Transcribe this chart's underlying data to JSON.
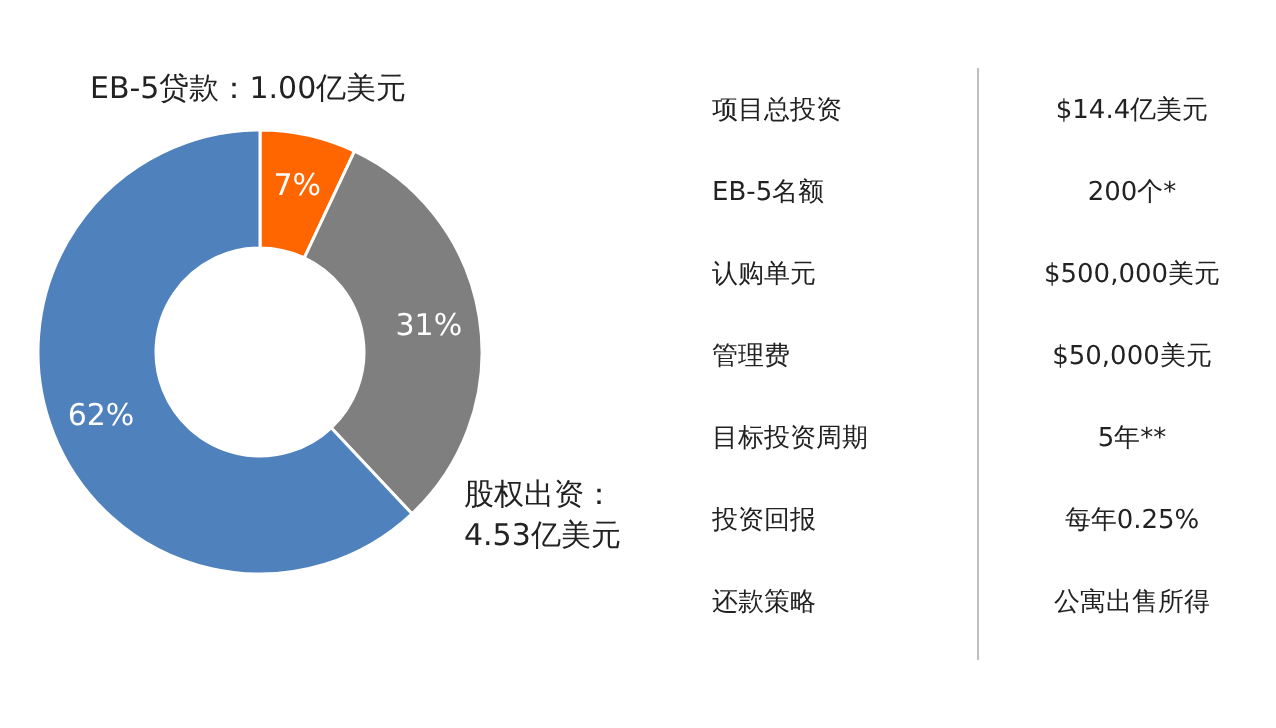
{
  "chart_data": [
    {
      "type": "donut",
      "categories": [
        "EB-5贷款：1.00亿美元",
        "股权出资：\n4.53亿美元",
        null
      ],
      "values": [
        7,
        31,
        62
      ],
      "colors": [
        "#ff6600",
        "#7f7f7f",
        "#4f81bd"
      ],
      "value_labels": [
        "7%",
        "31%",
        "62%"
      ]
    },
    {
      "type": "other",
      "annotations": [
        "项目总投资",
        "$14.4亿美元",
        "EB-5名额",
        "200个*",
        "认购单元",
        "$500,000美元",
        "管理费",
        "$50,000美元",
        "目标投资周期",
        "5年**",
        "投资回报",
        "每年0.25%",
        "还款策略",
        "公寓出售所得"
      ]
    }
  ]
}
